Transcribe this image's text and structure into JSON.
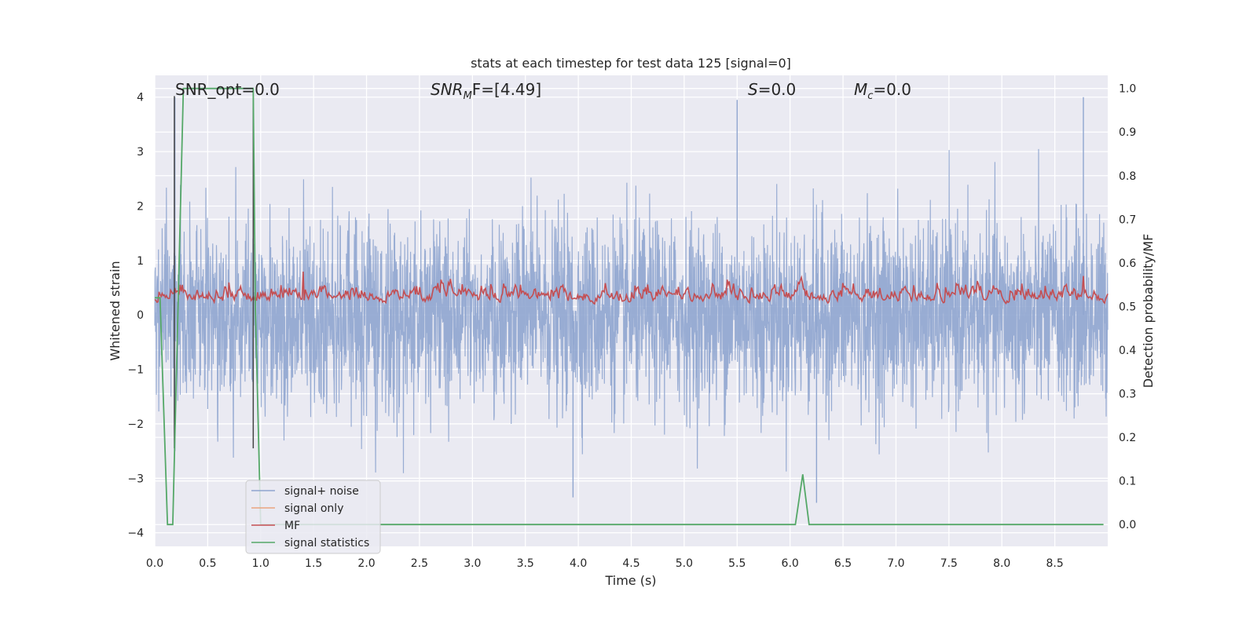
{
  "chart_data": {
    "type": "line",
    "title": "stats at each timestep for test data 125 [signal=0]",
    "xlabel": "Time (s)",
    "ylabel_left": "Whitened strain",
    "ylabel_right": "Detection probability/MF",
    "xlim": [
      0.0,
      9.0
    ],
    "ylim_left": [
      -4.25,
      4.4
    ],
    "ylim_right": [
      -0.05,
      1.03
    ],
    "x_ticks": [
      "0.0",
      "0.5",
      "1.0",
      "1.5",
      "2.0",
      "2.5",
      "3.0",
      "3.5",
      "4.0",
      "4.5",
      "5.0",
      "5.5",
      "6.0",
      "6.5",
      "7.0",
      "7.5",
      "8.0",
      "8.5"
    ],
    "y_ticks_left": [
      "−4",
      "−3",
      "−2",
      "−1",
      "0",
      "1",
      "2",
      "3",
      "4"
    ],
    "y_ticks_right": [
      "0.0",
      "0.1",
      "0.2",
      "0.3",
      "0.4",
      "0.5",
      "0.6",
      "0.7",
      "0.8",
      "0.9",
      "1.0"
    ],
    "grid": true,
    "legend_position": "lower-left",
    "annotations": {
      "snr_opt": "SNR_opt=0.0",
      "snr_mf_base": "SNR",
      "snr_mf_sub": "M",
      "snr_mf_rest": "F=[4.49]",
      "s_var": "S",
      "s_rest": "=0.0",
      "mc_base": "M",
      "mc_sub": "c",
      "mc_rest": "=0.0"
    },
    "series": [
      {
        "name": "signal+ noise",
        "color": "#8fa5cf",
        "axis": "left",
        "noise_sd": 0.85,
        "spikes": [
          [
            0.19,
            4.0
          ],
          [
            5.5,
            3.95
          ],
          [
            8.77,
            4.0
          ],
          [
            0.19,
            -2.5
          ],
          [
            3.95,
            -3.35
          ],
          [
            6.25,
            -3.45
          ]
        ]
      },
      {
        "name": "signal only",
        "color": "#eaa47f",
        "axis": "left",
        "values": []
      },
      {
        "name": "MF",
        "color": "#c44e52",
        "axis": "right",
        "baseline": 0.5,
        "amplitude_max": 0.08,
        "peaks": [
          [
            1.4,
            0.58
          ],
          [
            8.77,
            0.57
          ]
        ]
      },
      {
        "name": "signal statistics",
        "color": "#55a868",
        "axis": "right",
        "x": [
          0.0,
          0.05,
          0.12,
          0.17,
          0.27,
          0.93,
          0.95,
          1.0,
          5.9,
          6.05,
          6.12,
          6.18,
          8.96
        ],
        "y": [
          0.52,
          0.52,
          0.0,
          0.0,
          1.0,
          1.0,
          0.5,
          0.0,
          0.0,
          0.0,
          0.115,
          0.0,
          0.0
        ]
      },
      {
        "name": "",
        "color": "#444444",
        "axis": "left",
        "vlines": [
          0.185,
          0.93
        ]
      }
    ]
  }
}
